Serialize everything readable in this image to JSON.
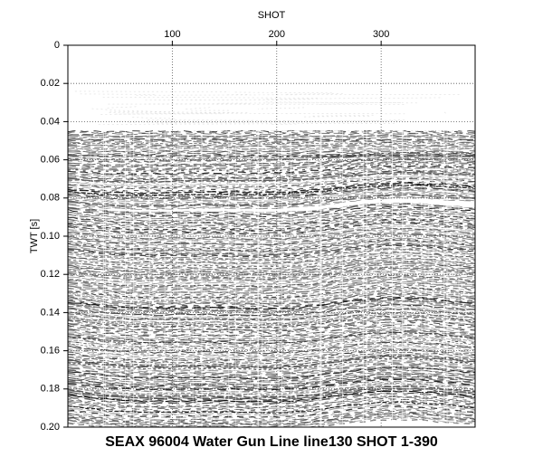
{
  "chart_data": {
    "type": "seismic-section",
    "title": "SEAX 96004 Water Gun Line line130 SHOT 1-390",
    "xlabel": "SHOT",
    "ylabel": "TWT [s]",
    "xlim": [
      0,
      390
    ],
    "xticks": [
      100,
      200,
      300
    ],
    "ylim": [
      0,
      0.2
    ],
    "yticks": [
      0,
      0.02,
      0.04,
      0.06,
      0.08,
      {
        "value": 0.1,
        "label": "0.10"
      },
      0.12,
      0.14,
      0.16,
      0.18,
      {
        "value": 0.2,
        "label": "0.20"
      }
    ],
    "grid": true
  }
}
